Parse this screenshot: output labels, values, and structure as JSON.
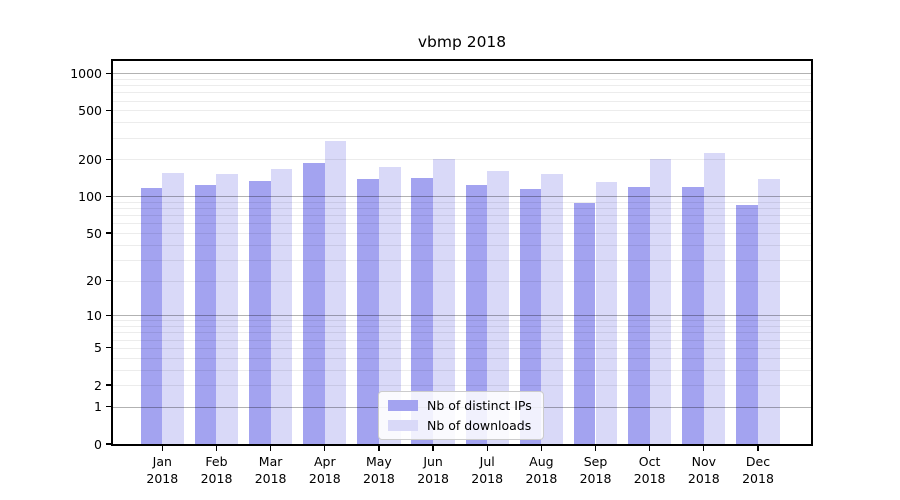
{
  "title": "vbmp 2018",
  "chart_data": {
    "type": "bar",
    "title": "vbmp 2018",
    "categories": [
      "Jan",
      "Feb",
      "Mar",
      "Apr",
      "May",
      "Jun",
      "Jul",
      "Aug",
      "Sep",
      "Oct",
      "Nov",
      "Dec"
    ],
    "category_year": "2018",
    "series": [
      {
        "name": "Nb of distinct IPs",
        "color": "#a3a3f0",
        "values": [
          116,
          124,
          134,
          187,
          138,
          142,
          124,
          114,
          89,
          120,
          119,
          85
        ]
      },
      {
        "name": "Nb of downloads",
        "color": "#d9d9f8",
        "values": [
          156,
          152,
          167,
          281,
          174,
          202,
          160,
          151,
          132,
          201,
          226,
          139
        ]
      }
    ],
    "yscale": "log1p",
    "ylim": [
      0,
      1255
    ],
    "yticks": [
      0,
      1,
      2,
      5,
      10,
      20,
      50,
      100,
      200,
      500,
      1000
    ],
    "major_gridlines": [
      1,
      10,
      100,
      1000
    ],
    "minor_gridlines": [
      2,
      3,
      4,
      5,
      6,
      7,
      8,
      9,
      20,
      30,
      40,
      50,
      60,
      70,
      80,
      90,
      200,
      300,
      400,
      500,
      600,
      700,
      800,
      900
    ],
    "grid": true,
    "legend_position": "lower center"
  }
}
